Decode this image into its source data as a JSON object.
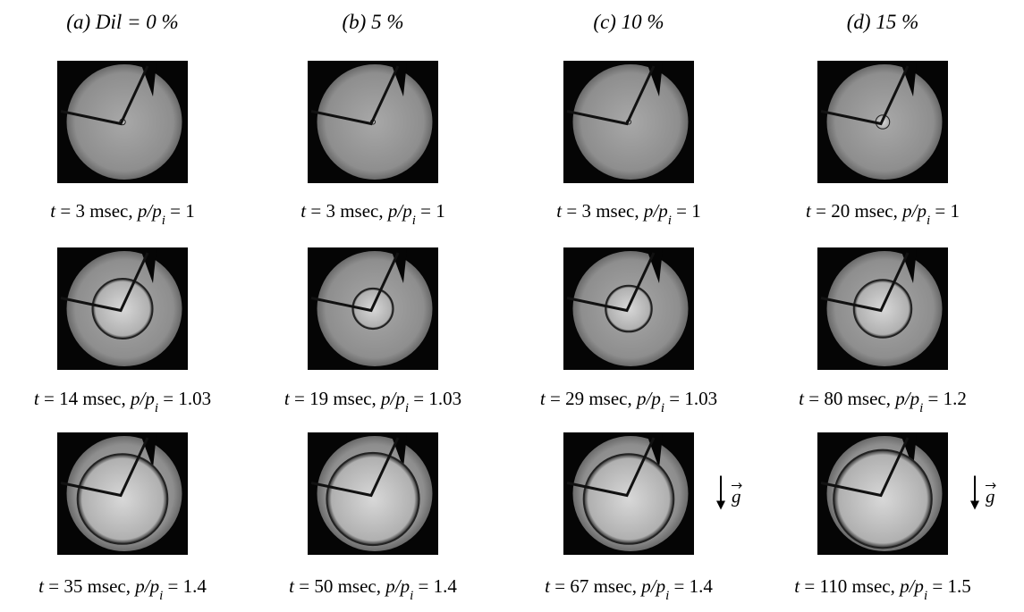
{
  "columns": [
    {
      "header": "(a) Dil = 0 %"
    },
    {
      "header": "(b) 5 %"
    },
    {
      "header": "(c) 10 %"
    },
    {
      "header": "(d) 15 %"
    }
  ],
  "rows": [
    {
      "cells": [
        {
          "caption": [
            "t",
            " = 3 msec, ",
            "p/p",
            "i",
            " = 1"
          ]
        },
        {
          "caption": [
            "t",
            " = 3 msec, ",
            "p/p",
            "i",
            " = 1"
          ]
        },
        {
          "caption": [
            "t",
            " = 3 msec, ",
            "p/p",
            "i",
            " = 1"
          ]
        },
        {
          "caption": [
            "t",
            " = 20 msec, ",
            "p/p",
            "i",
            " = 1"
          ]
        }
      ]
    },
    {
      "cells": [
        {
          "caption": [
            "t",
            " = 14 msec, ",
            "p/p",
            "i",
            " = 1.03"
          ]
        },
        {
          "caption": [
            "t",
            " = 19 msec, ",
            "p/p",
            "i",
            " = 1.03"
          ]
        },
        {
          "caption": [
            "t",
            " = 29 msec, ",
            "p/p",
            "i",
            " = 1.03"
          ]
        },
        {
          "caption": [
            "t",
            " = 80 msec, ",
            "p/p",
            "i",
            " = 1.2"
          ]
        }
      ]
    },
    {
      "cells": [
        {
          "caption": [
            "t",
            " = 35 msec, ",
            "p/p",
            "i",
            " = 1.4"
          ]
        },
        {
          "caption": [
            "t",
            " = 50 msec, ",
            "p/p",
            "i",
            " = 1.4"
          ]
        },
        {
          "caption": [
            "t",
            " = 67 msec, ",
            "p/p",
            "i",
            " = 1.4"
          ],
          "gravity": "g"
        },
        {
          "caption": [
            "t",
            " = 110 msec, ",
            "p/p",
            "i",
            " = 1.5"
          ],
          "gravity": "g"
        }
      ]
    }
  ]
}
